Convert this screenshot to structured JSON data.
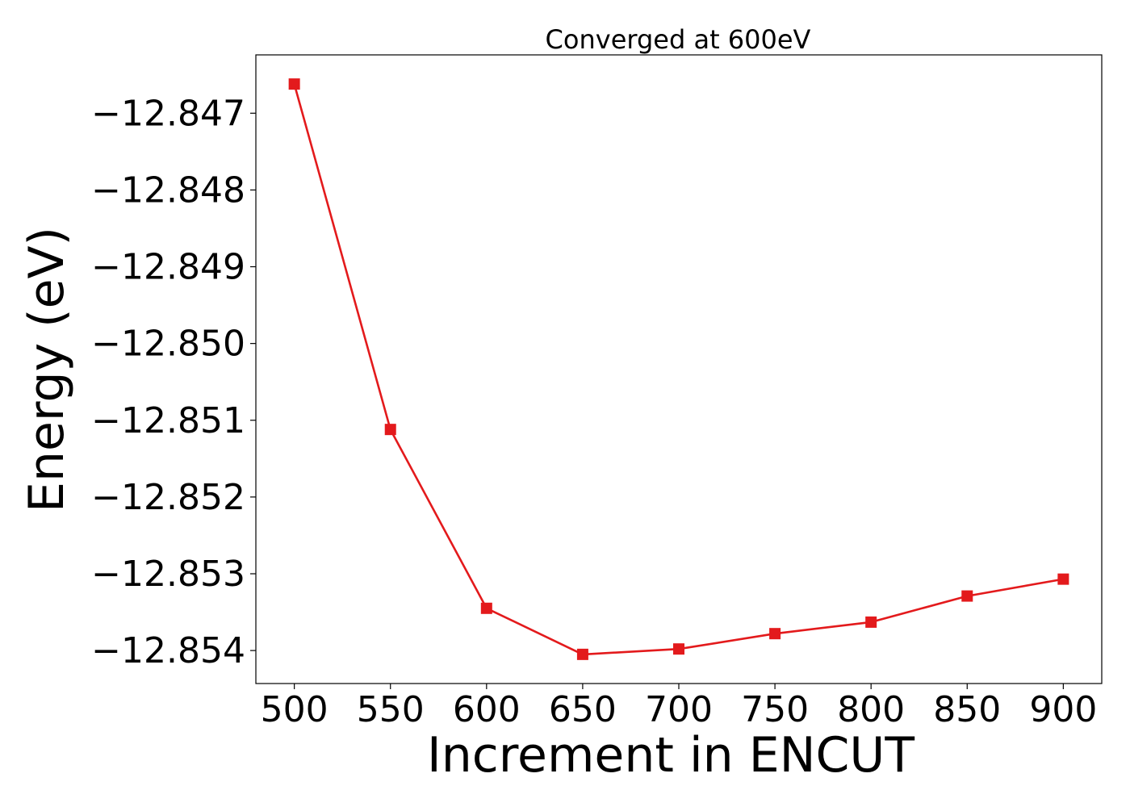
{
  "chart_data": {
    "type": "line",
    "title": "Converged at 600eV",
    "xlabel": "Increment in ENCUT",
    "ylabel": "Energy (eV)",
    "x": [
      500,
      550,
      600,
      650,
      700,
      750,
      800,
      850,
      900
    ],
    "series": [
      {
        "values": [
          -12.84662,
          -12.85112,
          -12.85345,
          -12.85405,
          -12.85398,
          -12.85378,
          -12.85363,
          -12.85329,
          -12.85307
        ],
        "color": "#e31a1c",
        "marker": "square"
      }
    ],
    "xlim": [
      480,
      920
    ],
    "ylim": [
      -12.85443,
      -12.84624
    ],
    "xticks": [
      500,
      550,
      600,
      650,
      700,
      750,
      800,
      850,
      900
    ],
    "xtick_labels": [
      "500",
      "550",
      "600",
      "650",
      "700",
      "750",
      "800",
      "850",
      "900"
    ],
    "yticks": [
      -12.847,
      -12.848,
      -12.849,
      -12.85,
      -12.851,
      -12.852,
      -12.853,
      -12.854
    ],
    "ytick_labels": [
      "−12.847",
      "−12.848",
      "−12.849",
      "−12.850",
      "−12.851",
      "−12.852",
      "−12.853",
      "−12.854"
    ],
    "grid": false,
    "legend": "none"
  }
}
